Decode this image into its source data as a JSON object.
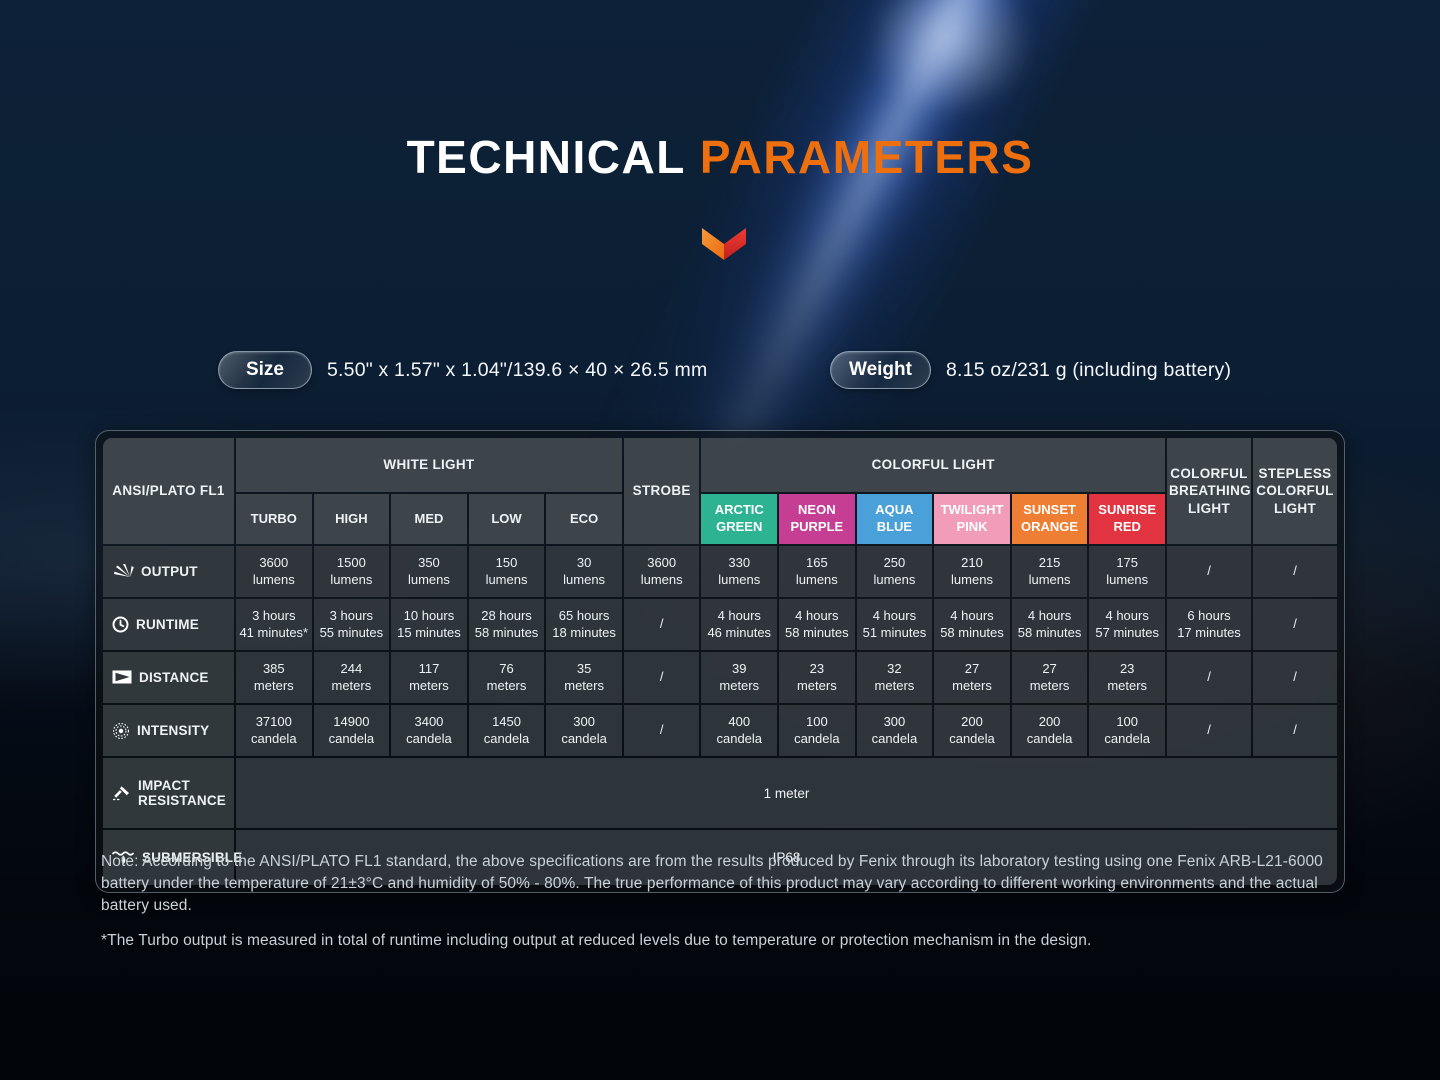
{
  "title": {
    "prefix": "TECHNICAL",
    "accent": "PARAMETERS"
  },
  "accent_color": "#ee6f0e",
  "specs": {
    "size_label": "Size",
    "size_value": "5.50\" x 1.57\" x 1.04\"/139.6 × 40 × 26.5 mm",
    "weight_label": "Weight",
    "weight_value": "8.15 oz/231 g (including battery)"
  },
  "table": {
    "corner_label": "ANSI/PLATO FL1",
    "group_headers": {
      "white_light": "WHITE LIGHT",
      "strobe": "STROBE",
      "colorful_light": "COLORFUL LIGHT",
      "colorful_breathing_light": "COLORFUL BREATHING LIGHT",
      "stepless_colorful_light": "STEPLESS COLORFUL LIGHT"
    },
    "white_modes": [
      "TURBO",
      "HIGH",
      "MED",
      "LOW",
      "ECO"
    ],
    "color_modes": [
      {
        "label": "ARCTIC GREEN",
        "color": "#2db392"
      },
      {
        "label": "NEON PURPLE",
        "color": "#c53e94"
      },
      {
        "label": "AQUA BLUE",
        "color": "#4aa0d9"
      },
      {
        "label": "TWILIGHT PINK",
        "color": "#f19cb9"
      },
      {
        "label": "SUNSET ORANGE",
        "color": "#ee7e33"
      },
      {
        "label": "SUNRISE RED",
        "color": "#e23340"
      }
    ],
    "rows": [
      {
        "label": "OUTPUT",
        "icon": "output-icon",
        "values": [
          "3600\nlumens",
          "1500\nlumens",
          "350\nlumens",
          "150\nlumens",
          "30\nlumens",
          "3600\nlumens",
          "330\nlumens",
          "165\nlumens",
          "250\nlumens",
          "210\nlumens",
          "215\nlumens",
          "175\nlumens",
          "/",
          "/"
        ]
      },
      {
        "label": "RUNTIME",
        "icon": "runtime-clock-icon",
        "values": [
          "3 hours\n41 minutes*",
          "3 hours\n55 minutes",
          "10 hours\n15 minutes",
          "28 hours\n58 minutes",
          "65 hours\n18 minutes",
          "/",
          "4 hours\n46 minutes",
          "4 hours\n58 minutes",
          "4 hours\n51 minutes",
          "4 hours\n58 minutes",
          "4 hours\n58 minutes",
          "4 hours\n57 minutes",
          "6 hours\n17 minutes",
          "/"
        ]
      },
      {
        "label": "DISTANCE",
        "icon": "distance-beam-icon",
        "values": [
          "385\nmeters",
          "244\nmeters",
          "117\nmeters",
          "76\nmeters",
          "35\nmeters",
          "/",
          "39\nmeters",
          "23\nmeters",
          "32\nmeters",
          "27\nmeters",
          "27\nmeters",
          "23\nmeters",
          "/",
          "/"
        ]
      },
      {
        "label": "INTENSITY",
        "icon": "intensity-icon",
        "values": [
          "37100\ncandela",
          "14900\ncandela",
          "3400\ncandela",
          "1450\ncandela",
          "300\ncandela",
          "/",
          "400\ncandela",
          "100\ncandela",
          "300\ncandela",
          "200\ncandela",
          "200\ncandela",
          "100\ncandela",
          "/",
          "/"
        ]
      }
    ],
    "impact_resistance": {
      "label": "IMPACT RESISTANCE",
      "value": "1 meter"
    },
    "submersible": {
      "label": "SUBMERSIBLE",
      "value": "IP68"
    }
  },
  "notes": {
    "ansi": "Note: According to the ANSI/PLATO FL1 standard, the above specifications are from the results produced by Fenix through its laboratory testing using one Fenix ARB-L21-6000 battery under the temperature of 21±3°C and humidity of 50% - 80%. The true performance of this product may vary according to different working environments and the actual battery used.",
    "turbo": "*The Turbo output is measured in total of runtime including output at reduced levels due to temperature or protection mechanism in the design."
  }
}
